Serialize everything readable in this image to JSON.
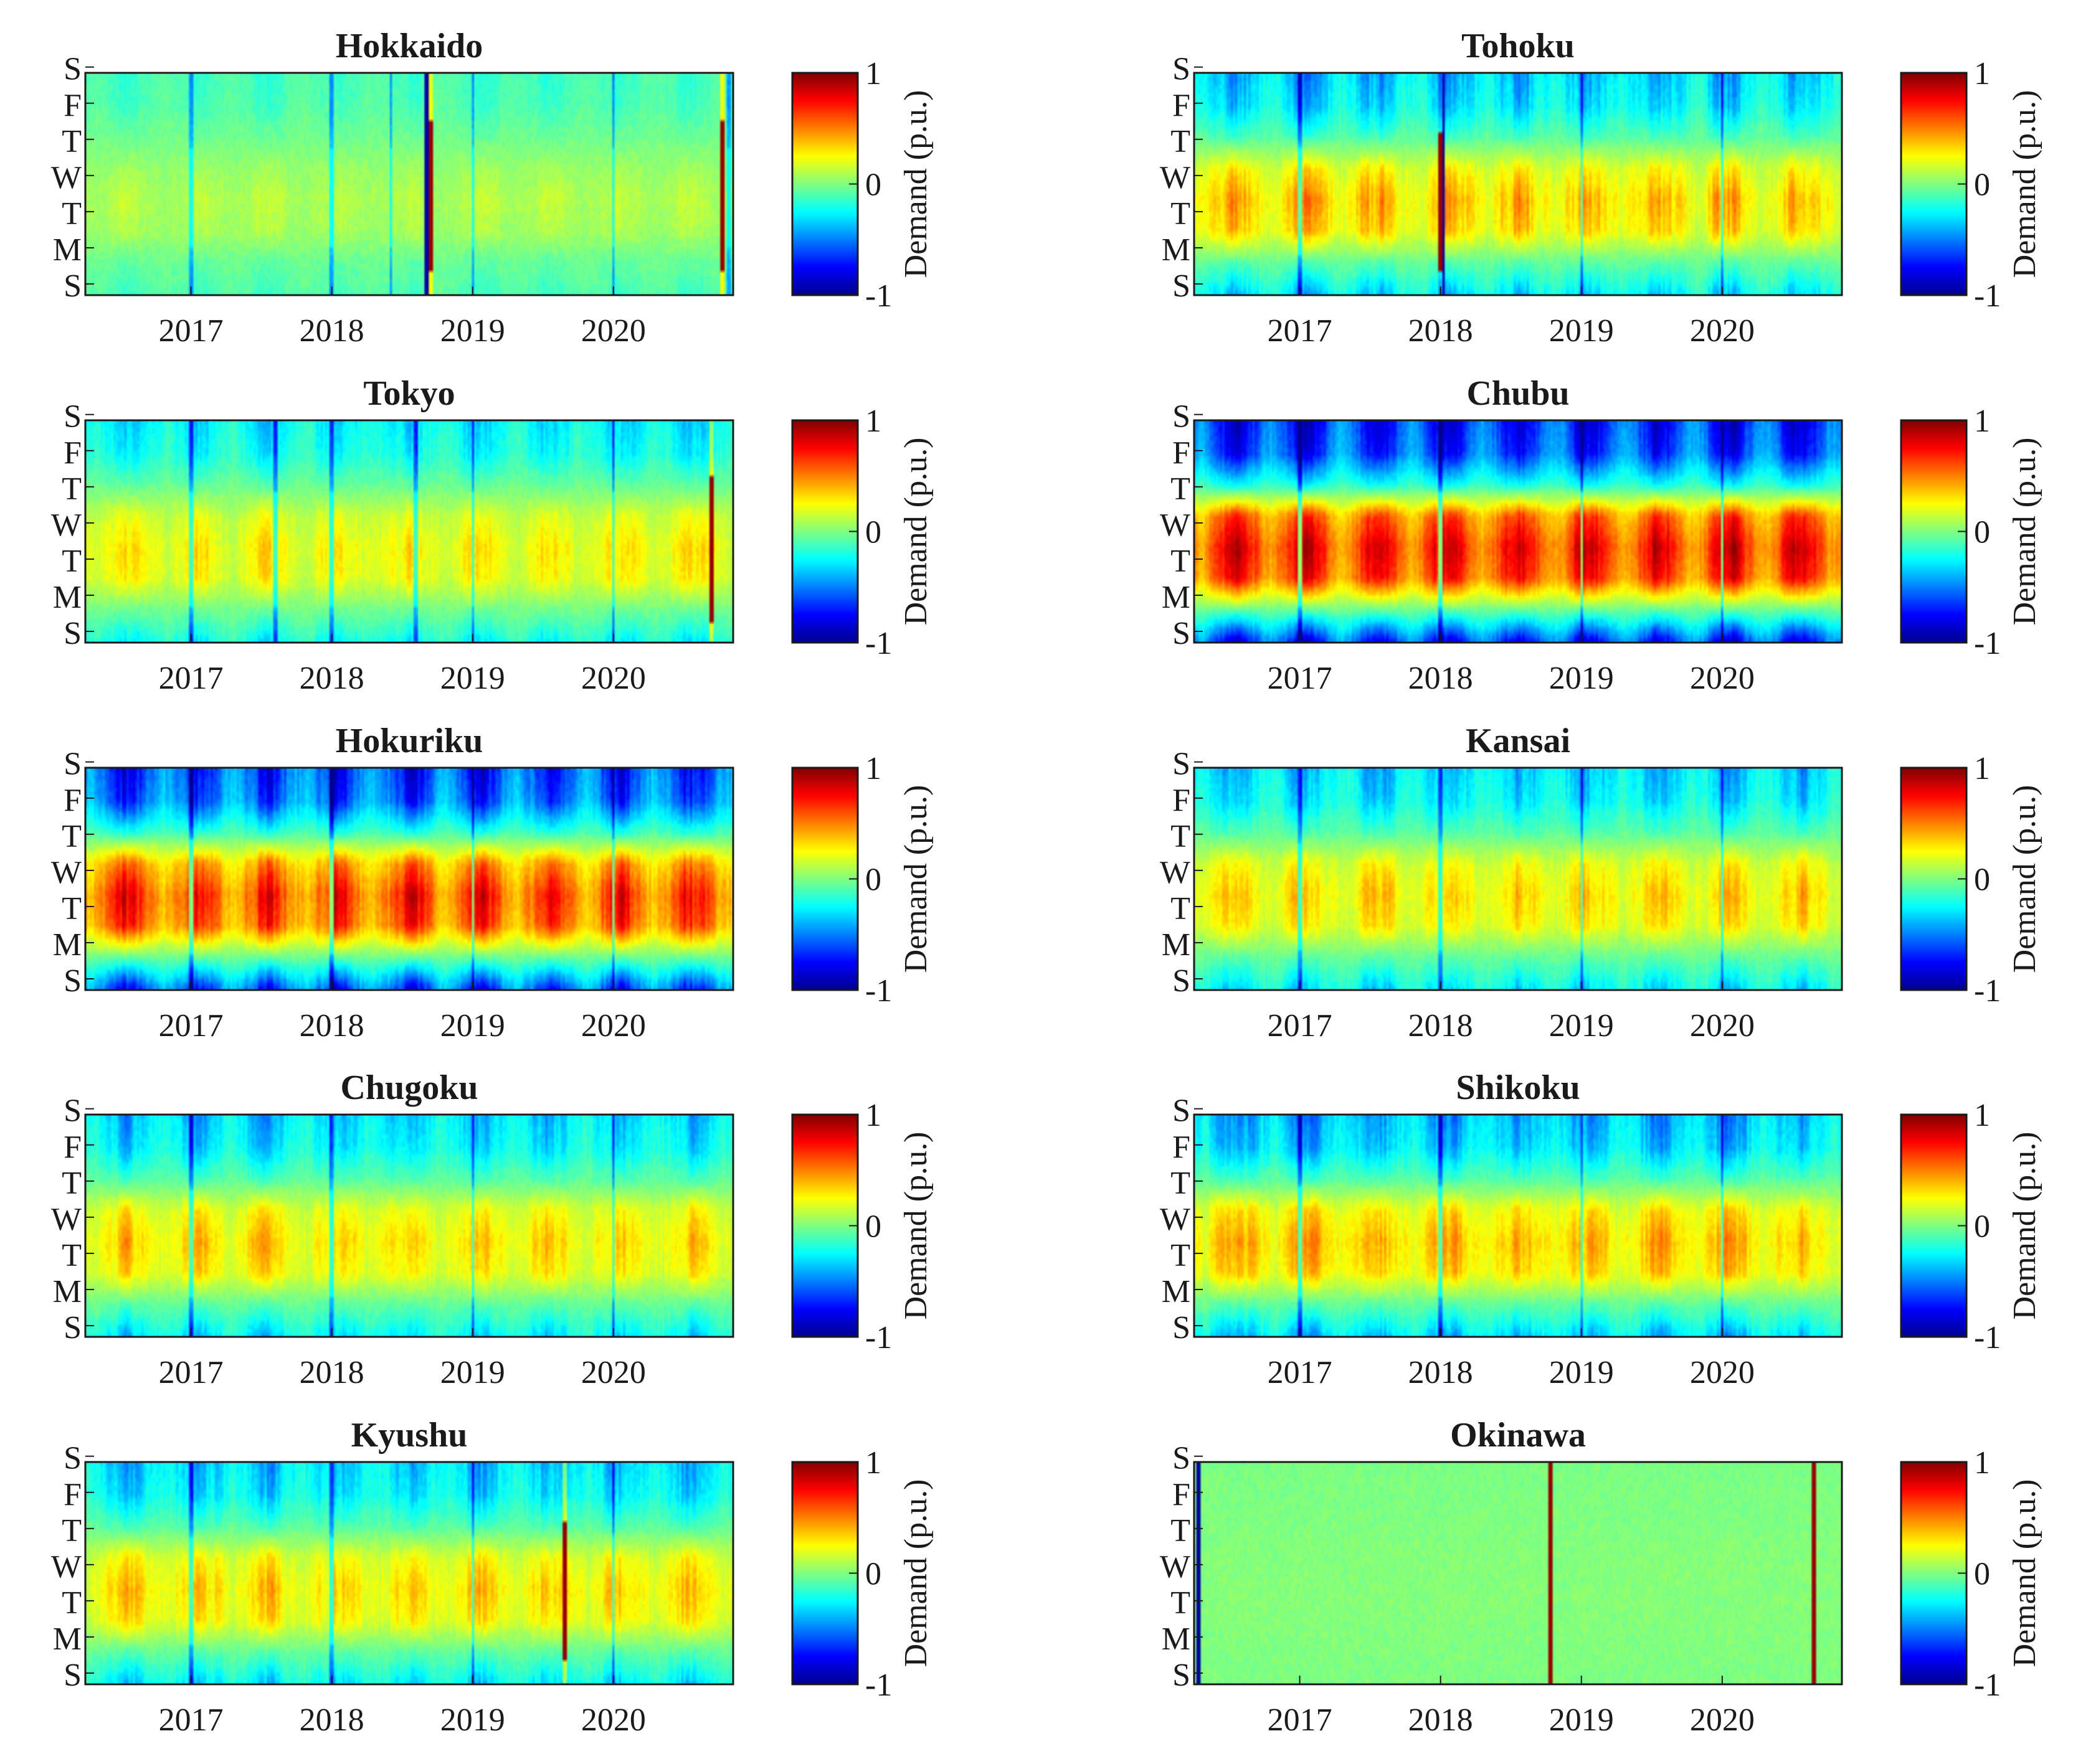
{
  "colors": {
    "colormap": [
      "#00008f",
      "#0000ff",
      "#00ffff",
      "#ffff00",
      "#ff0000",
      "#800000"
    ],
    "frame": "#1a1a1a"
  },
  "chart_data": [
    {
      "type": "heatmap",
      "title": "Hokkaido",
      "xlabel": "",
      "ylabel": "",
      "x_ticks": [
        "2017",
        "2018",
        "2019",
        "2020"
      ],
      "x_tick_values": [
        2017,
        2018,
        2019,
        2020
      ],
      "xlim": [
        2016.25,
        2020.85
      ],
      "y_ticks": [
        "S",
        "M",
        "T",
        "W",
        "T",
        "F",
        "S"
      ],
      "colorbar": {
        "label": "Demand (p.u.)",
        "ticks": [
          "-1",
          "0",
          "1"
        ],
        "tick_values": [
          -1,
          0,
          1
        ],
        "range": [
          -1,
          1
        ]
      },
      "weekday_profile": [
        -0.35,
        -0.3,
        -0.1,
        0.15,
        0.3,
        0.22,
        -0.15,
        -0.3
      ],
      "amplitude": 0.4,
      "noise": 0.35,
      "dark_stripes": [
        2017.0,
        2018.0,
        2018.42,
        2019.0,
        2020.0,
        2020.82
      ],
      "red_stripes": [
        2018.7,
        2020.77
      ],
      "blue_stripes": [
        2018.67
      ]
    },
    {
      "type": "heatmap",
      "title": "Tohoku",
      "xlabel": "",
      "ylabel": "",
      "x_ticks": [
        "2017",
        "2018",
        "2019",
        "2020"
      ],
      "x_tick_values": [
        2017,
        2018,
        2019,
        2020
      ],
      "xlim": [
        2016.25,
        2020.85
      ],
      "y_ticks": [
        "S",
        "M",
        "T",
        "W",
        "T",
        "F",
        "S"
      ],
      "colorbar": {
        "label": "Demand (p.u.)",
        "ticks": [
          "-1",
          "0",
          "1"
        ],
        "tick_values": [
          -1,
          0,
          1
        ],
        "range": [
          -1,
          1
        ]
      },
      "weekday_profile": [
        -0.55,
        -0.45,
        -0.15,
        0.35,
        0.55,
        0.45,
        -0.1,
        -0.45
      ],
      "amplitude": 0.75,
      "noise": 0.45,
      "dark_stripes": [
        2017.0,
        2018.0,
        2019.0,
        2020.0
      ],
      "red_stripes": [
        2018.0
      ],
      "blue_stripes": [
        2018.02
      ]
    },
    {
      "type": "heatmap",
      "title": "Tokyo",
      "xlabel": "",
      "ylabel": "",
      "x_ticks": [
        "2017",
        "2018",
        "2019",
        "2020"
      ],
      "x_tick_values": [
        2017,
        2018,
        2019,
        2020
      ],
      "xlim": [
        2016.25,
        2020.85
      ],
      "y_ticks": [
        "S",
        "M",
        "T",
        "W",
        "T",
        "F",
        "S"
      ],
      "colorbar": {
        "label": "Demand (p.u.)",
        "ticks": [
          "-1",
          "0",
          "1"
        ],
        "tick_values": [
          -1,
          0,
          1
        ],
        "range": [
          -1,
          1
        ]
      },
      "weekday_profile": [
        -0.5,
        -0.4,
        -0.1,
        0.3,
        0.45,
        0.4,
        -0.05,
        -0.4
      ],
      "amplitude": 0.65,
      "noise": 0.4,
      "dark_stripes": [
        2017.0,
        2017.6,
        2018.0,
        2018.6,
        2019.0,
        2020.0
      ],
      "red_stripes": [
        2020.7
      ],
      "blue_stripes": []
    },
    {
      "type": "heatmap",
      "title": "Chubu",
      "xlabel": "",
      "ylabel": "",
      "x_ticks": [
        "2017",
        "2018",
        "2019",
        "2020"
      ],
      "x_tick_values": [
        2017,
        2018,
        2019,
        2020
      ],
      "xlim": [
        2016.25,
        2020.85
      ],
      "y_ticks": [
        "S",
        "M",
        "T",
        "W",
        "T",
        "F",
        "S"
      ],
      "colorbar": {
        "label": "Demand (p.u.)",
        "ticks": [
          "-1",
          "0",
          "1"
        ],
        "tick_values": [
          -1,
          0,
          1
        ],
        "range": [
          -1,
          1
        ]
      },
      "weekday_profile": [
        -0.85,
        -0.75,
        -0.25,
        0.65,
        0.85,
        0.75,
        -0.05,
        -0.8
      ],
      "amplitude": 0.95,
      "noise": 0.2,
      "dark_stripes": [
        2017.0,
        2018.0,
        2019.0,
        2020.0
      ],
      "red_stripes": [],
      "blue_stripes": []
    },
    {
      "type": "heatmap",
      "title": "Hokuriku",
      "xlabel": "",
      "ylabel": "",
      "x_ticks": [
        "2017",
        "2018",
        "2019",
        "2020"
      ],
      "x_tick_values": [
        2017,
        2018,
        2019,
        2020
      ],
      "xlim": [
        2016.25,
        2020.85
      ],
      "y_ticks": [
        "S",
        "M",
        "T",
        "W",
        "T",
        "F",
        "S"
      ],
      "colorbar": {
        "label": "Demand (p.u.)",
        "ticks": [
          "-1",
          "0",
          "1"
        ],
        "tick_values": [
          -1,
          0,
          1
        ],
        "range": [
          -1,
          1
        ]
      },
      "weekday_profile": [
        -0.8,
        -0.7,
        -0.2,
        0.55,
        0.8,
        0.7,
        -0.05,
        -0.75
      ],
      "amplitude": 0.9,
      "noise": 0.3,
      "dark_stripes": [
        2017.0,
        2018.0,
        2019.0,
        2020.0
      ],
      "red_stripes": [],
      "blue_stripes": []
    },
    {
      "type": "heatmap",
      "title": "Kansai",
      "xlabel": "",
      "ylabel": "",
      "x_ticks": [
        "2017",
        "2018",
        "2019",
        "2020"
      ],
      "x_tick_values": [
        2017,
        2018,
        2019,
        2020
      ],
      "xlim": [
        2016.25,
        2020.85
      ],
      "y_ticks": [
        "S",
        "M",
        "T",
        "W",
        "T",
        "F",
        "S"
      ],
      "colorbar": {
        "label": "Demand (p.u.)",
        "ticks": [
          "-1",
          "0",
          "1"
        ],
        "tick_values": [
          -1,
          0,
          1
        ],
        "range": [
          -1,
          1
        ]
      },
      "weekday_profile": [
        -0.55,
        -0.45,
        -0.15,
        0.35,
        0.5,
        0.4,
        -0.1,
        -0.45
      ],
      "amplitude": 0.7,
      "noise": 0.4,
      "dark_stripes": [
        2017.0,
        2018.0,
        2019.0,
        2020.0
      ],
      "red_stripes": [],
      "blue_stripes": []
    },
    {
      "type": "heatmap",
      "title": "Chugoku",
      "xlabel": "",
      "ylabel": "",
      "x_ticks": [
        "2017",
        "2018",
        "2019",
        "2020"
      ],
      "x_tick_values": [
        2017,
        2018,
        2019,
        2020
      ],
      "xlim": [
        2016.25,
        2020.85
      ],
      "y_ticks": [
        "S",
        "M",
        "T",
        "W",
        "T",
        "F",
        "S"
      ],
      "colorbar": {
        "label": "Demand (p.u.)",
        "ticks": [
          "-1",
          "0",
          "1"
        ],
        "tick_values": [
          -1,
          0,
          1
        ],
        "range": [
          -1,
          1
        ]
      },
      "weekday_profile": [
        -0.55,
        -0.45,
        -0.15,
        0.35,
        0.5,
        0.4,
        -0.1,
        -0.45
      ],
      "amplitude": 0.7,
      "noise": 0.4,
      "dark_stripes": [
        2017.0,
        2018.0,
        2019.0,
        2020.0
      ],
      "red_stripes": [],
      "blue_stripes": []
    },
    {
      "type": "heatmap",
      "title": "Shikoku",
      "xlabel": "",
      "ylabel": "",
      "x_ticks": [
        "2017",
        "2018",
        "2019",
        "2020"
      ],
      "x_tick_values": [
        2017,
        2018,
        2019,
        2020
      ],
      "xlim": [
        2016.25,
        2020.85
      ],
      "y_ticks": [
        "S",
        "M",
        "T",
        "W",
        "T",
        "F",
        "S"
      ],
      "colorbar": {
        "label": "Demand (p.u.)",
        "ticks": [
          "-1",
          "0",
          "1"
        ],
        "tick_values": [
          -1,
          0,
          1
        ],
        "range": [
          -1,
          1
        ]
      },
      "weekday_profile": [
        -0.6,
        -0.5,
        -0.15,
        0.4,
        0.55,
        0.45,
        -0.1,
        -0.5
      ],
      "amplitude": 0.75,
      "noise": 0.4,
      "dark_stripes": [
        2017.0,
        2018.0,
        2019.0,
        2020.0
      ],
      "red_stripes": [],
      "blue_stripes": []
    },
    {
      "type": "heatmap",
      "title": "Kyushu",
      "xlabel": "",
      "ylabel": "",
      "x_ticks": [
        "2017",
        "2018",
        "2019",
        "2020"
      ],
      "x_tick_values": [
        2017,
        2018,
        2019,
        2020
      ],
      "xlim": [
        2016.25,
        2020.85
      ],
      "y_ticks": [
        "S",
        "M",
        "T",
        "W",
        "T",
        "F",
        "S"
      ],
      "colorbar": {
        "label": "Demand (p.u.)",
        "ticks": [
          "-1",
          "0",
          "1"
        ],
        "tick_values": [
          -1,
          0,
          1
        ],
        "range": [
          -1,
          1
        ]
      },
      "weekday_profile": [
        -0.55,
        -0.45,
        -0.15,
        0.35,
        0.5,
        0.4,
        -0.1,
        -0.45
      ],
      "amplitude": 0.7,
      "noise": 0.45,
      "dark_stripes": [
        2017.0,
        2018.0,
        2019.0,
        2020.0
      ],
      "red_stripes": [
        2019.65
      ],
      "blue_stripes": []
    },
    {
      "type": "heatmap",
      "title": "Okinawa",
      "xlabel": "",
      "ylabel": "",
      "x_ticks": [
        "2017",
        "2018",
        "2019",
        "2020"
      ],
      "x_tick_values": [
        2017,
        2018,
        2019,
        2020
      ],
      "xlim": [
        2016.25,
        2020.85
      ],
      "y_ticks": [
        "S",
        "M",
        "T",
        "W",
        "T",
        "F",
        "S"
      ],
      "colorbar": {
        "label": "Demand (p.u.)",
        "ticks": [
          "-1",
          "0",
          "1"
        ],
        "tick_values": [
          -1,
          0,
          1
        ],
        "range": [
          -1,
          1
        ]
      },
      "weekday_profile": [
        -0.05,
        -0.03,
        0.0,
        0.08,
        0.1,
        0.08,
        0.02,
        -0.03
      ],
      "amplitude": 0.15,
      "noise": 0.2,
      "dark_stripes": [],
      "red_stripes": [
        2018.78,
        2020.65
      ],
      "blue_stripes": [
        2016.28
      ]
    }
  ]
}
